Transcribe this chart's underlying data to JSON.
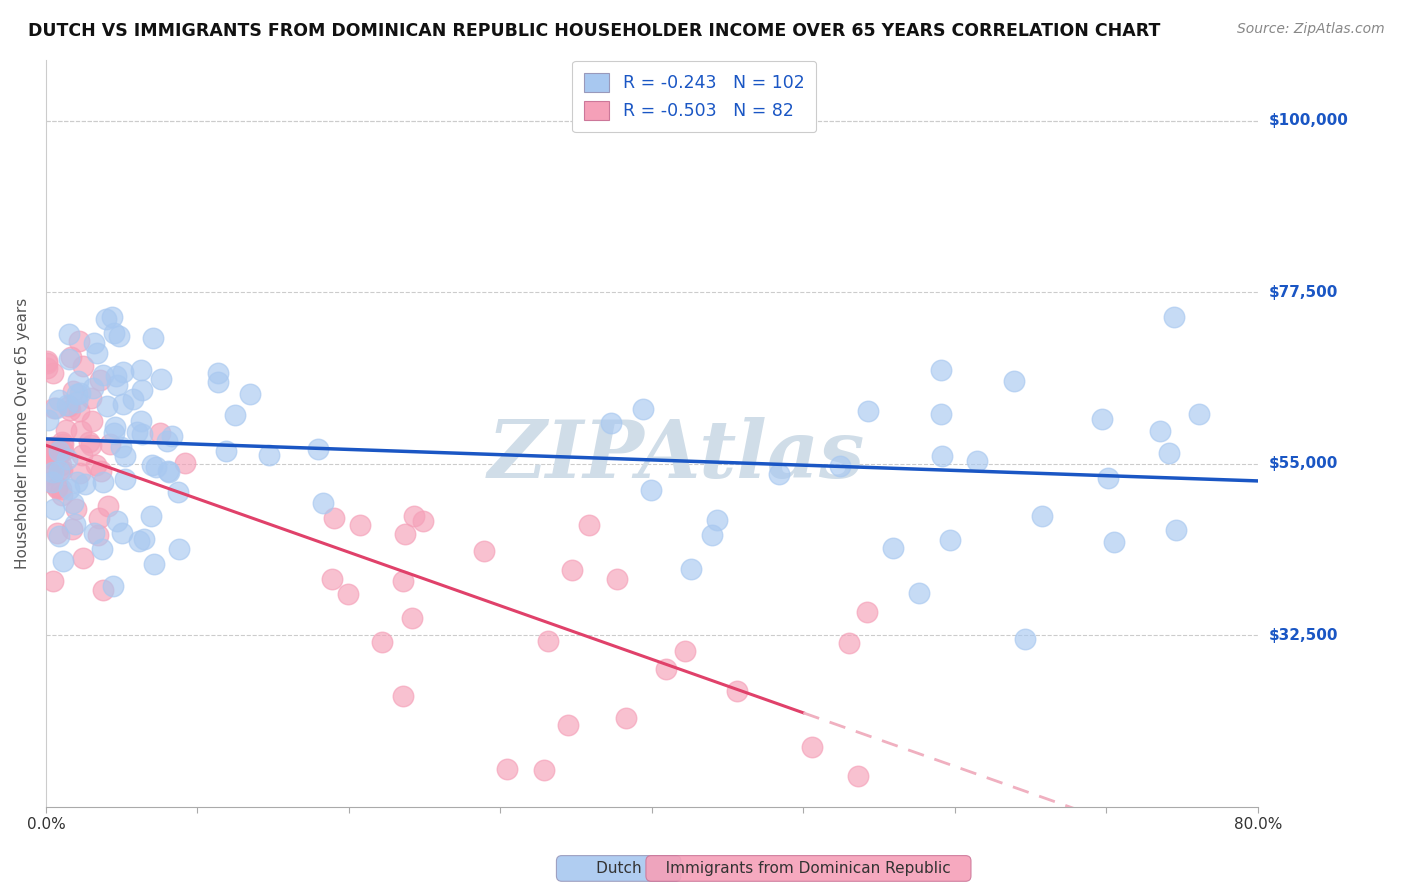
{
  "title": "DUTCH VS IMMIGRANTS FROM DOMINICAN REPUBLIC HOUSEHOLDER INCOME OVER 65 YEARS CORRELATION CHART",
  "source": "Source: ZipAtlas.com",
  "ylabel": "Householder Income Over 65 years",
  "ytick_labels": [
    "$32,500",
    "$55,000",
    "$77,500",
    "$100,000"
  ],
  "ytick_values": [
    32500,
    55000,
    77500,
    100000
  ],
  "ymin": 10000,
  "ymax": 108000,
  "xmin": 0.0,
  "xmax": 0.8,
  "dutch_color": "#a8c8f0",
  "dutch_line_color": "#1a56c4",
  "dominican_color": "#f5a0b8",
  "dominican_line_color": "#e0416a",
  "dominican_dash_color": "#f0b0c0",
  "watermark_color": "#d0dde8",
  "legend_R_dutch": "-0.243",
  "legend_N_dutch": "102",
  "legend_R_dominican": "-0.503",
  "legend_N_dominican": "82",
  "dutch_intercept": 58500,
  "dutch_slope": -11000,
  "dominican_intercept": 57000,
  "dominican_slope": -70000,
  "dutch_seed": 12,
  "dom_seed": 7
}
